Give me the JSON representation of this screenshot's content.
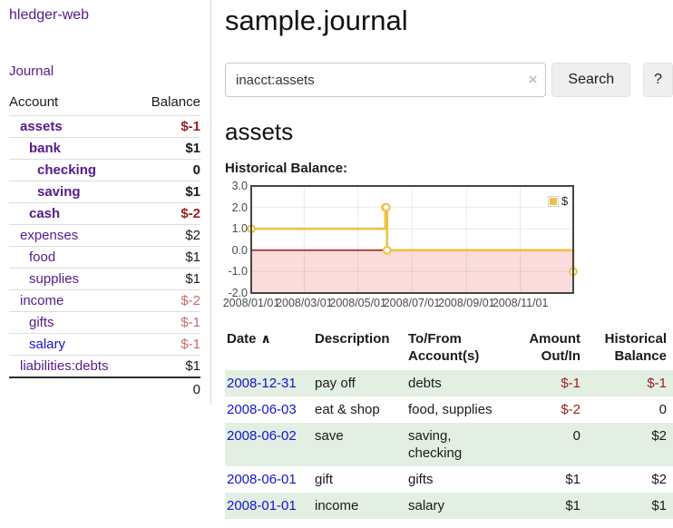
{
  "app": {
    "title": "hledger-web"
  },
  "sidebar": {
    "journal_label": "Journal",
    "table": {
      "headers": {
        "account": "Account",
        "balance": "Balance"
      },
      "rows": [
        {
          "account": "assets",
          "balance": "$-1"
        },
        {
          "account": "bank",
          "balance": "$1"
        },
        {
          "account": "checking",
          "balance": "0"
        },
        {
          "account": "saving",
          "balance": "$1"
        },
        {
          "account": "cash",
          "balance": "$-2"
        },
        {
          "account": "expenses",
          "balance": "$2"
        },
        {
          "account": "food",
          "balance": "$1"
        },
        {
          "account": "supplies",
          "balance": "$1"
        },
        {
          "account": "income",
          "balance": "$-2"
        },
        {
          "account": "gifts",
          "balance": "$-1"
        },
        {
          "account": "salary",
          "balance": "$-1"
        },
        {
          "account": "liabilities:debts",
          "balance": "$1"
        }
      ],
      "total": "0"
    }
  },
  "main": {
    "title": "sample.journal",
    "search": {
      "value": "inacct:assets",
      "clear_icon": "×",
      "button_label": "Search",
      "help_label": "?"
    },
    "account_heading": "assets",
    "chart_label": "Historical Balance:",
    "register_table": {
      "headers": {
        "date": "Date",
        "sort_icon": "∧",
        "description": "Description",
        "account_line1": "To/From",
        "account_line2": "Account(s)",
        "amount_line1": "Amount",
        "amount_line2": "Out/In",
        "balance_line1": "Historical",
        "balance_line2": "Balance"
      },
      "rows": [
        {
          "date": "2008-12-31",
          "description": "pay off",
          "accounts": "debts",
          "amount": "$-1",
          "balance": "$-1"
        },
        {
          "date": "2008-06-03",
          "description": "eat & shop",
          "accounts": "food, supplies",
          "amount": "$-2",
          "balance": "0"
        },
        {
          "date": "2008-06-02",
          "description": "save",
          "accounts": "saving, checking",
          "amount": "0",
          "balance": "$2"
        },
        {
          "date": "2008-06-01",
          "description": "gift",
          "accounts": "gifts",
          "amount": "$1",
          "balance": "$2"
        },
        {
          "date": "2008-01-01",
          "description": "income",
          "accounts": "salary",
          "amount": "$1",
          "balance": "$1"
        }
      ]
    }
  },
  "chart_data": {
    "type": "line",
    "style": "step",
    "title": "Historical Balance",
    "x_domain": [
      "2008-01-01",
      "2008-12-31"
    ],
    "ylim": [
      -2,
      3
    ],
    "series": [
      {
        "name": "$",
        "color": "#edc240",
        "points": [
          [
            "2008-01-01",
            1
          ],
          [
            "2008-06-01",
            2
          ],
          [
            "2008-06-02",
            2
          ],
          [
            "2008-06-03",
            0
          ],
          [
            "2008-12-31",
            -1
          ]
        ]
      }
    ],
    "x_ticks": [
      {
        "date": "2008-01-01",
        "label": "2008/01/01"
      },
      {
        "date": "2008-03-01",
        "label": "2008/03/01"
      },
      {
        "date": "2008-05-01",
        "label": "2008/05/01"
      },
      {
        "date": "2008-07-01",
        "label": "2008/07/01"
      },
      {
        "date": "2008-09-01",
        "label": "2008/09/01"
      },
      {
        "date": "2008-11-01",
        "label": "2008/11/01"
      }
    ],
    "y_ticks": [
      {
        "value": 3,
        "label": "3.0"
      },
      {
        "value": 2,
        "label": "2.0"
      },
      {
        "value": 1,
        "label": "1.0"
      },
      {
        "value": 0,
        "label": "0.0"
      },
      {
        "value": -1,
        "label": "-1.0"
      },
      {
        "value": -2,
        "label": "-2.0"
      }
    ],
    "legend_position": "top-right",
    "grid": true,
    "negative_region_color": "#fbdcdc",
    "zero_line_color": "#990000"
  },
  "colors": {
    "link_purple": "#551a8b",
    "link_blue": "#1414cc",
    "negative_dark": "#991f1f",
    "negative_light": "#c86a6a",
    "row_stripe_green": "#e2efe2",
    "chart_line_yellow": "#edc240",
    "negative_region_pink": "#fbdcdc",
    "zero_line_red": "#990000",
    "plot_border": "#454545"
  }
}
